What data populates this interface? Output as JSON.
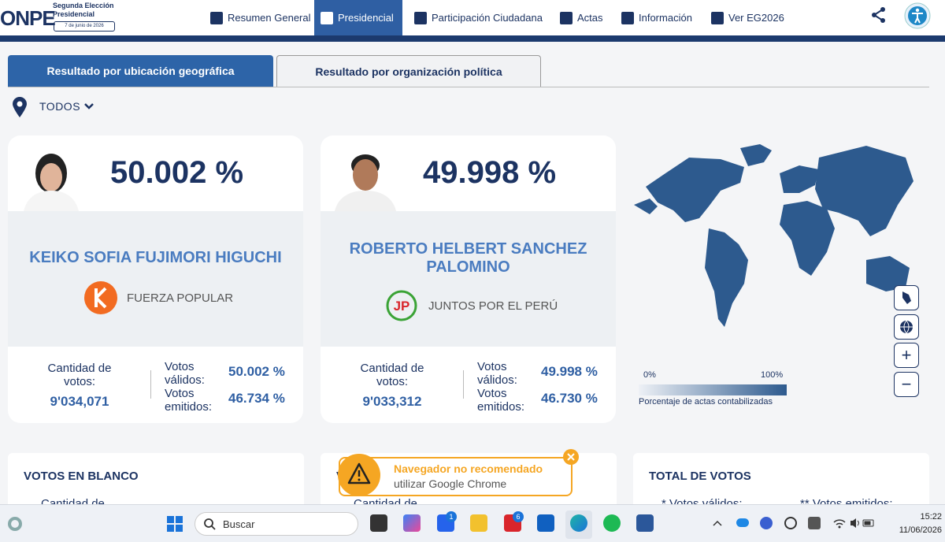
{
  "header": {
    "logo": "ONPE",
    "election": "Segunda Elección Presidencial",
    "date": "7 de junio de 2026"
  },
  "nav": [
    "Resumen General",
    "Presidencial",
    "Participación Ciudadana",
    "Actas",
    "Información",
    "Ver EG2026"
  ],
  "tabs": [
    "Resultado por ubicación geográfica",
    "Resultado por organización política"
  ],
  "filter": "TODOS",
  "candidates": [
    {
      "percent": "50.002 %",
      "name": "KEIKO SOFIA FUJIMORI HIGUCHI",
      "party": "FUERZA POPULAR",
      "votes_label": "Cantidad de votos:",
      "votes": "9'034,071",
      "valid_label": "Votos válidos:",
      "valid": "50.002 %",
      "emitted_label": "Votos emitidos:",
      "emitted": "46.734 %"
    },
    {
      "percent": "49.998 %",
      "name": "ROBERTO HELBERT SANCHEZ PALOMINO",
      "party": "JUNTOS POR EL PERÚ",
      "votes_label": "Cantidad de votos:",
      "votes": "9'033,312",
      "valid_label": "Votos válidos:",
      "valid": "49.998 %",
      "emitted_label": "Votos emitidos:",
      "emitted": "46.730 %"
    }
  ],
  "map_legend": {
    "min": "0%",
    "max": "100%",
    "caption": "Porcentaje de actas contabilizadas"
  },
  "bottom_cards": [
    {
      "title": "VOTOS EN BLANCO",
      "text": "Cantidad de"
    },
    {
      "title": "V",
      "text": "Cantidad de"
    },
    {
      "title": "TOTAL DE VOTOS",
      "text": "* Votos válidos:",
      "text2": "** Votos emitidos:"
    }
  ],
  "toast": {
    "title": "Navegador no recomendado",
    "message": "utilizar Google Chrome"
  },
  "taskbar": {
    "search": "Buscar",
    "badges": [
      "1",
      "6"
    ],
    "time": "15:22",
    "date": "11/06/2026"
  }
}
